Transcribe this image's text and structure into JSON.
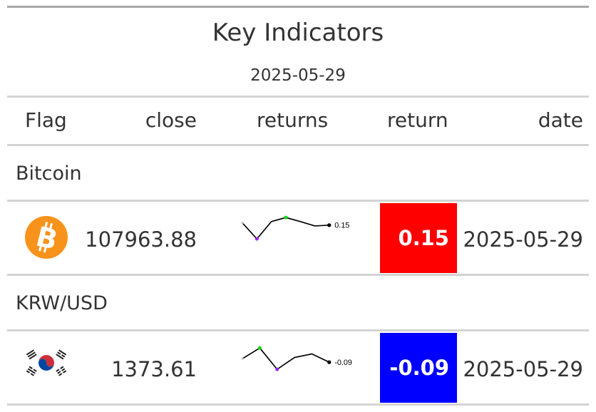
{
  "title": "Key Indicators",
  "subtitle": "2025-05-29",
  "columns": {
    "flag": "Flag",
    "close": "close",
    "returns": "returns",
    "return": "return",
    "date": "date"
  },
  "rows": [
    {
      "group": "Bitcoin",
      "flag_icon": "bitcoin-icon",
      "close": "107963.88",
      "spark": {
        "values": [
          0.3,
          -0.8,
          0.4,
          0.68,
          0.4,
          0.1,
          0.15
        ],
        "min_index": 1,
        "max_index": 3,
        "end_label": "0.15"
      },
      "return": "0.15",
      "return_color": "#ff0000",
      "date": "2025-05-29"
    },
    {
      "group": "KRW/USD",
      "flag_icon": "south-korea-flag-icon",
      "close": "1373.61",
      "spark": {
        "values": [
          -0.06,
          0.03,
          -0.15,
          -0.05,
          -0.02,
          -0.09
        ],
        "min_index": 2,
        "max_index": 1,
        "end_label": "-0.09"
      },
      "return": "-0.09",
      "return_color": "#0000ff",
      "date": "2025-05-29"
    }
  ],
  "colors": {
    "rule": "#d3d3d3",
    "top_rule": "#a8a8a8",
    "spark_line": "#000000",
    "spark_min": "#a020f0",
    "spark_max": "#00dd00",
    "bitcoin": "#f7931a"
  }
}
